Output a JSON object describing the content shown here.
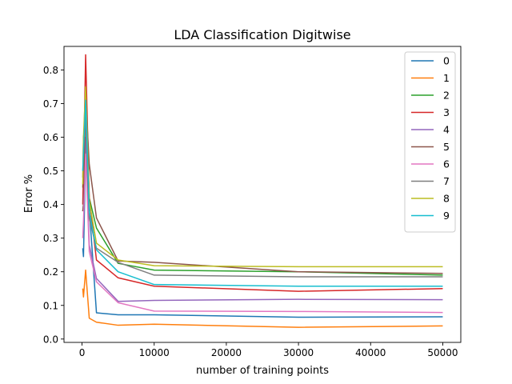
{
  "chart_data": {
    "type": "line",
    "title": "LDA Classification Digitwise",
    "xlabel": "number of training points",
    "ylabel": "Error %",
    "xlim": [
      -2500,
      52500
    ],
    "ylim": [
      -0.01,
      0.87
    ],
    "xticks": [
      0,
      10000,
      20000,
      30000,
      40000,
      50000
    ],
    "xtick_labels": [
      "0",
      "10000",
      "20000",
      "30000",
      "40000",
      "50000"
    ],
    "yticks": [
      0.0,
      0.1,
      0.2,
      0.3,
      0.4,
      0.5,
      0.6,
      0.7,
      0.8
    ],
    "ytick_labels": [
      "0.0",
      "0.1",
      "0.2",
      "0.3",
      "0.4",
      "0.5",
      "0.6",
      "0.7",
      "0.8"
    ],
    "grid": false,
    "legend_position": "top-right",
    "x": [
      100,
      200,
      500,
      1000,
      2000,
      5000,
      10000,
      30000,
      50000
    ],
    "series": [
      {
        "name": "0",
        "color": "#1f77b4",
        "values": [
          0.27,
          0.245,
          0.56,
          0.39,
          0.078,
          0.072,
          0.072,
          0.065,
          0.066
        ]
      },
      {
        "name": "1",
        "color": "#ff7f0e",
        "values": [
          0.15,
          0.125,
          0.205,
          0.062,
          0.05,
          0.041,
          0.044,
          0.035,
          0.039
        ]
      },
      {
        "name": "2",
        "color": "#2ca02c",
        "values": [
          0.45,
          0.5,
          0.72,
          0.42,
          0.33,
          0.225,
          0.205,
          0.2,
          0.19
        ]
      },
      {
        "name": "3",
        "color": "#d62728",
        "values": [
          0.4,
          0.5,
          0.845,
          0.42,
          0.235,
          0.182,
          0.157,
          0.142,
          0.15
        ]
      },
      {
        "name": "4",
        "color": "#9467bd",
        "values": [
          0.38,
          0.4,
          0.6,
          0.28,
          0.18,
          0.112,
          0.115,
          0.118,
          0.117
        ]
      },
      {
        "name": "5",
        "color": "#8c564b",
        "values": [
          0.38,
          0.4,
          0.72,
          0.52,
          0.36,
          0.232,
          0.228,
          0.2,
          0.195
        ]
      },
      {
        "name": "6",
        "color": "#e377c2",
        "values": [
          0.3,
          0.35,
          0.55,
          0.26,
          0.17,
          0.108,
          0.083,
          0.082,
          0.079
        ]
      },
      {
        "name": "7",
        "color": "#7f7f7f",
        "values": [
          0.48,
          0.6,
          0.65,
          0.36,
          0.27,
          0.228,
          0.19,
          0.185,
          0.185
        ]
      },
      {
        "name": "8",
        "color": "#bcbd22",
        "values": [
          0.46,
          0.6,
          0.75,
          0.41,
          0.285,
          0.235,
          0.218,
          0.215,
          0.215
        ]
      },
      {
        "name": "9",
        "color": "#17becf",
        "values": [
          0.5,
          0.55,
          0.71,
          0.38,
          0.265,
          0.2,
          0.162,
          0.157,
          0.157
        ]
      }
    ]
  }
}
